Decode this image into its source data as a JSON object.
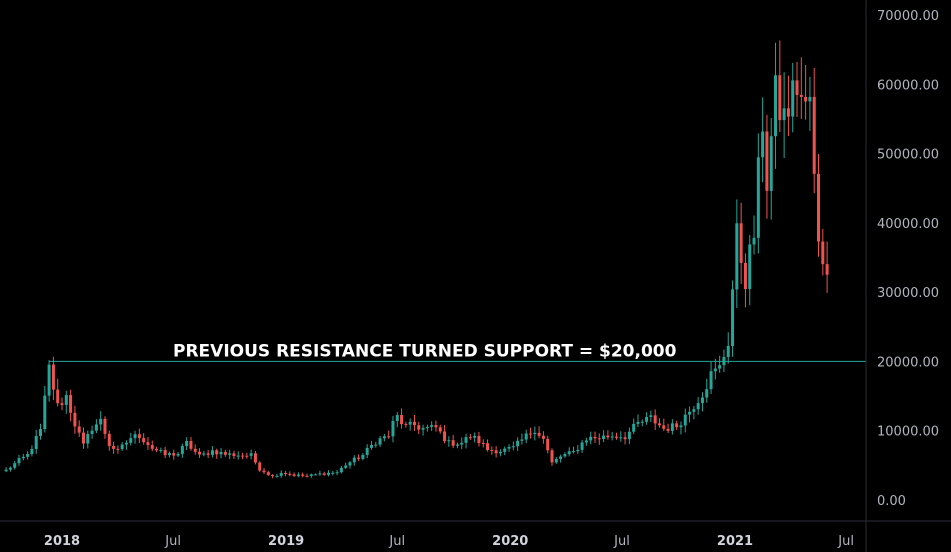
{
  "chart_data": {
    "type": "candlestick",
    "colors": {
      "up": "#26a69a",
      "down": "#ef5350",
      "level_line": "#26a69a",
      "background": "#000000",
      "axis_text": "#b2b5be"
    },
    "y_ticks": [
      "70000.00",
      "60000.00",
      "50000.00",
      "40000.00",
      "30000.00",
      "20000.00",
      "10000.00",
      "0.00"
    ],
    "x_ticks": [
      {
        "label": "2018",
        "date": "2018-01-01",
        "bold": true
      },
      {
        "label": "Jul",
        "date": "2018-07-01",
        "bold": false
      },
      {
        "label": "2019",
        "date": "2019-01-01",
        "bold": true
      },
      {
        "label": "Jul",
        "date": "2019-07-01",
        "bold": false
      },
      {
        "label": "2020",
        "date": "2020-01-01",
        "bold": true
      },
      {
        "label": "Jul",
        "date": "2020-07-01",
        "bold": false
      },
      {
        "label": "2021",
        "date": "2021-01-01",
        "bold": true
      },
      {
        "label": "Jul",
        "date": "2021-07-01",
        "bold": false
      }
    ],
    "ylim": [
      0,
      70000
    ],
    "xlim": [
      "2017-10-01",
      "2021-07-01"
    ],
    "horizontal_level": {
      "value": 20000,
      "from": "2017-12-11",
      "label": "PREVIOUS RESISTANCE TURNED SUPPORT = $20,000"
    },
    "anchors": [
      [
        "2017-10-02",
        4300
      ],
      [
        "2017-10-23",
        5700
      ],
      [
        "2017-11-06",
        6500
      ],
      [
        "2017-11-27",
        10000
      ],
      [
        "2017-12-11",
        19000
      ],
      [
        "2017-12-25",
        13500
      ],
      [
        "2018-01-08",
        15000
      ],
      [
        "2018-01-22",
        11000
      ],
      [
        "2018-02-05",
        7800
      ],
      [
        "2018-02-19",
        10500
      ],
      [
        "2018-03-05",
        11400
      ],
      [
        "2018-03-19",
        8000
      ],
      [
        "2018-04-02",
        7000
      ],
      [
        "2018-04-23",
        9000
      ],
      [
        "2018-05-07",
        9300
      ],
      [
        "2018-05-28",
        7500
      ],
      [
        "2018-06-18",
        6500
      ],
      [
        "2018-07-09",
        6700
      ],
      [
        "2018-07-23",
        8200
      ],
      [
        "2018-08-13",
        6300
      ],
      [
        "2018-09-03",
        7100
      ],
      [
        "2018-09-24",
        6600
      ],
      [
        "2018-10-15",
        6500
      ],
      [
        "2018-11-05",
        6400
      ],
      [
        "2018-11-19",
        4500
      ],
      [
        "2018-12-10",
        3400
      ],
      [
        "2018-12-24",
        4000
      ],
      [
        "2019-01-14",
        3600
      ],
      [
        "2019-02-04",
        3450
      ],
      [
        "2019-03-04",
        3850
      ],
      [
        "2019-03-25",
        4000
      ],
      [
        "2019-04-08",
        5100
      ],
      [
        "2019-05-06",
        6500
      ],
      [
        "2019-05-27",
        8500
      ],
      [
        "2019-06-17",
        9300
      ],
      [
        "2019-06-24",
        11000
      ],
      [
        "2019-07-01",
        12000
      ],
      [
        "2019-07-15",
        10500
      ],
      [
        "2019-07-29",
        10800
      ],
      [
        "2019-08-12",
        10300
      ],
      [
        "2019-09-02",
        10400
      ],
      [
        "2019-09-23",
        8200
      ],
      [
        "2019-10-14",
        8300
      ],
      [
        "2019-10-28",
        9200
      ],
      [
        "2019-11-11",
        8500
      ],
      [
        "2019-11-25",
        7300
      ],
      [
        "2019-12-16",
        7100
      ],
      [
        "2020-01-06",
        7500
      ],
      [
        "2020-01-27",
        9200
      ],
      [
        "2020-02-10",
        10300
      ],
      [
        "2020-02-24",
        8800
      ],
      [
        "2020-03-09",
        5300
      ],
      [
        "2020-03-23",
        6300
      ],
      [
        "2020-04-13",
        6900
      ],
      [
        "2020-05-04",
        8900
      ],
      [
        "2020-05-25",
        9000
      ],
      [
        "2020-06-15",
        9300
      ],
      [
        "2020-07-06",
        9200
      ],
      [
        "2020-07-27",
        11000
      ],
      [
        "2020-08-17",
        11800
      ],
      [
        "2020-09-07",
        10300
      ],
      [
        "2020-09-28",
        10700
      ],
      [
        "2020-10-19",
        12900
      ],
      [
        "2020-11-09",
        15500
      ],
      [
        "2020-11-23",
        18000
      ],
      [
        "2020-12-07",
        19000
      ],
      [
        "2020-12-21",
        23000
      ],
      [
        "2021-01-04",
        38000
      ],
      [
        "2021-01-18",
        32000
      ],
      [
        "2021-02-01",
        38500
      ],
      [
        "2021-02-15",
        55000
      ],
      [
        "2021-02-22",
        46000
      ],
      [
        "2021-03-08",
        58000
      ],
      [
        "2021-03-22",
        55000
      ],
      [
        "2021-04-12",
        60000
      ],
      [
        "2021-04-26",
        56000
      ],
      [
        "2021-05-03",
        58000
      ],
      [
        "2021-05-10",
        46000
      ],
      [
        "2021-05-17",
        36500
      ],
      [
        "2021-05-24",
        35000
      ],
      [
        "2021-05-31",
        34000
      ]
    ]
  }
}
